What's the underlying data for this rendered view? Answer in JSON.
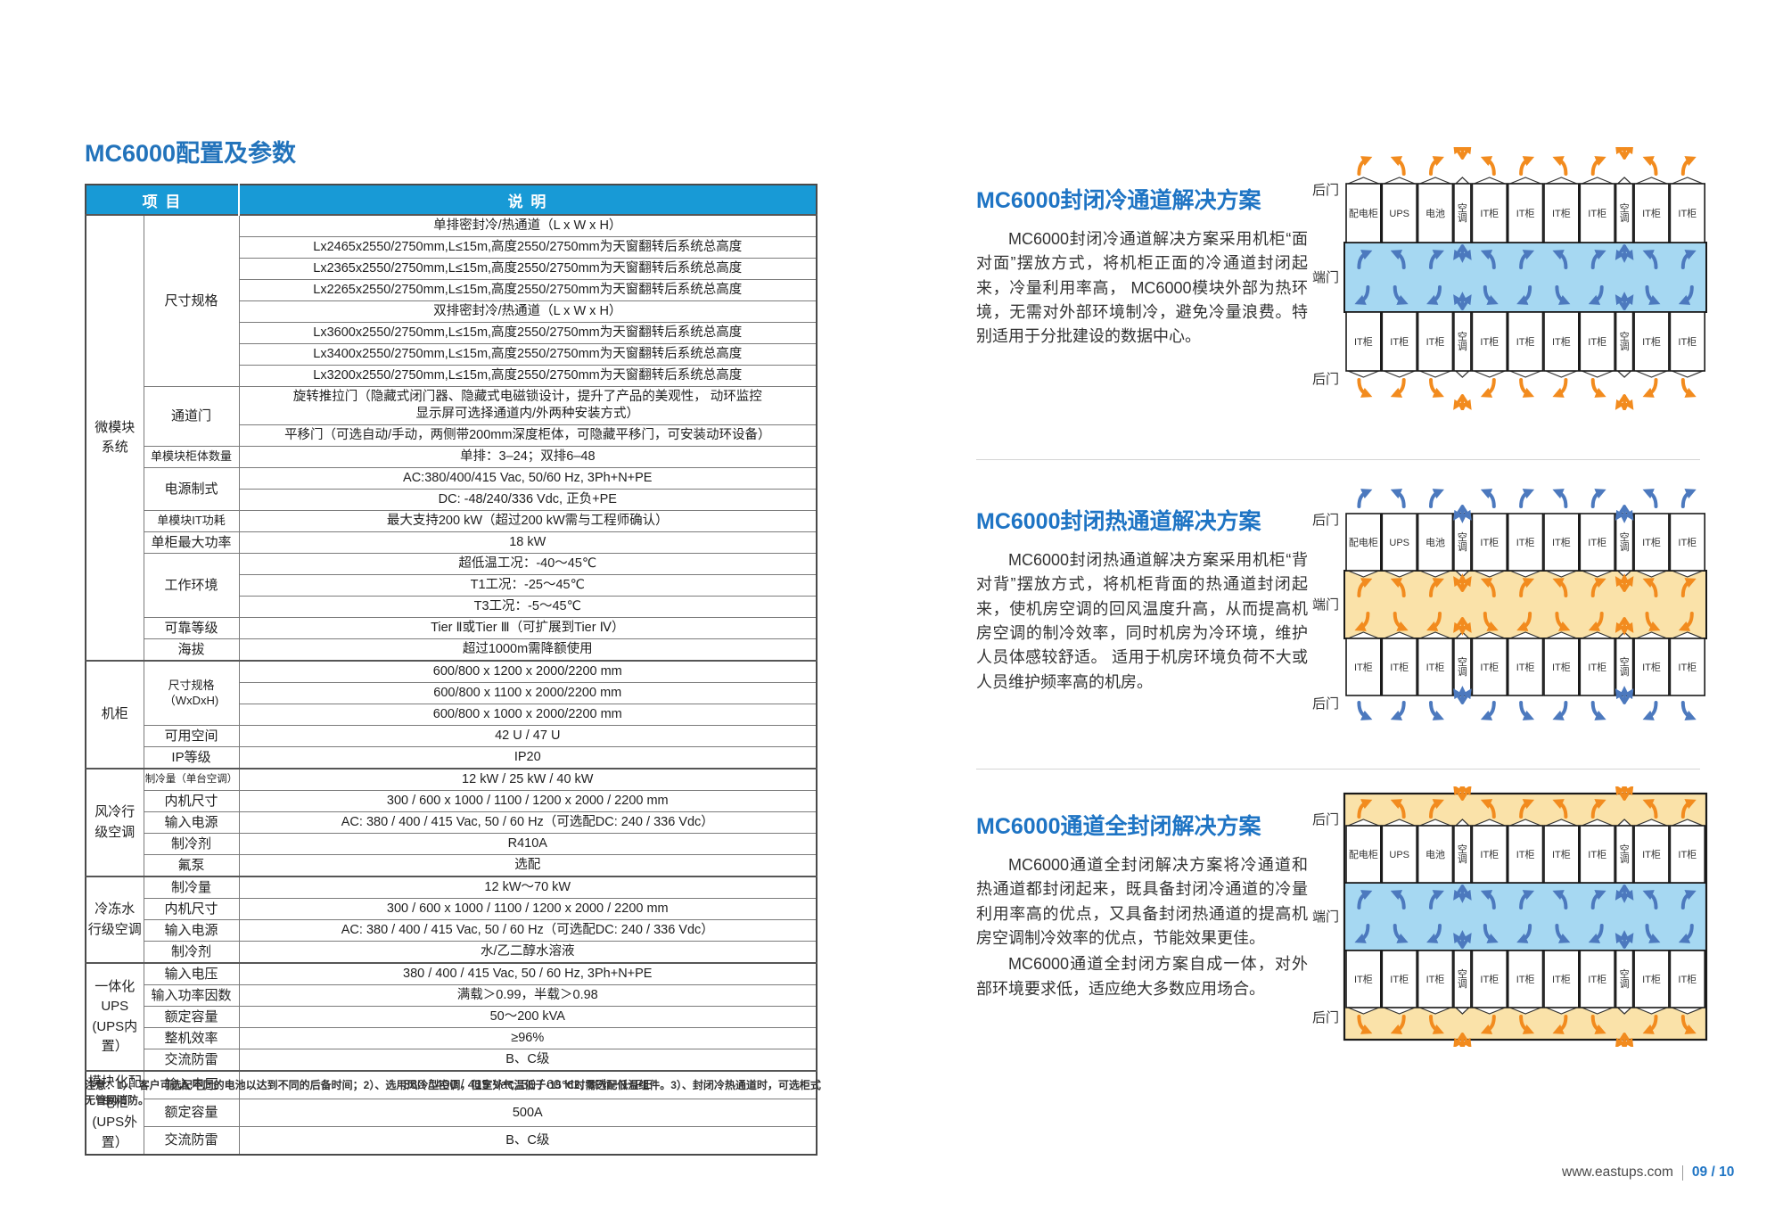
{
  "table": {
    "title": "MC6000配置及参数",
    "header": {
      "item": "项  目",
      "desc": "说  明"
    },
    "groups": [
      {
        "name": "微模块\n系统",
        "items": [
          {
            "label": "尺寸规格",
            "rows": [
              "单排密封冷/热通道（L x W x H）",
              "Lx2465x2550/2750mm,L≤15m,高度2550/2750mm为天窗翻转后系统总高度",
              "Lx2365x2550/2750mm,L≤15m,高度2550/2750mm为天窗翻转后系统总高度",
              "Lx2265x2550/2750mm,L≤15m,高度2550/2750mm为天窗翻转后系统总高度",
              "双排密封冷/热通道（L x W x H）",
              "Lx3600x2550/2750mm,L≤15m,高度2550/2750mm为天窗翻转后系统总高度",
              "Lx3400x2550/2750mm,L≤15m,高度2550/2750mm为天窗翻转后系统总高度",
              "Lx3200x2550/2750mm,L≤15m,高度2550/2750mm为天窗翻转后系统总高度"
            ]
          },
          {
            "label": "通道门",
            "rows": [
              "旋转推拉门（隐藏式闭门器、隐藏式电磁锁设计，提升了产品的美观性， 动环监控\n显示屏可选择通道内/外两种安装方式）",
              "平移门（可选自动/手动，两侧带200mm深度柜体，可隐藏平移门，可安装动环设备）"
            ]
          },
          {
            "label": "单模块柜体数量",
            "rows": [
              "单排：3–24；双排6–48"
            ]
          },
          {
            "label": "电源制式",
            "rows": [
              "AC:380/400/415 Vac, 50/60 Hz, 3Ph+N+PE",
              "DC: -48/240/336 Vdc, 正负+PE"
            ]
          },
          {
            "label": "单模块IT功耗",
            "rows": [
              "最大支持200 kW（超过200 kW需与工程师确认）"
            ]
          },
          {
            "label": "单柜最大功率",
            "rows": [
              "18 kW"
            ]
          },
          {
            "label": "工作环境",
            "rows": [
              "超低温工况：-40～45℃",
              "T1工况：-25～45℃",
              "T3工况：-5～45℃"
            ]
          },
          {
            "label": "可靠等级",
            "rows": [
              "Tier Ⅱ或Tier Ⅲ（可扩展到Tier Ⅳ）"
            ]
          },
          {
            "label": "海拔",
            "rows": [
              "超过1000m需降额使用"
            ]
          }
        ]
      },
      {
        "name": "机柜",
        "items": [
          {
            "label": "尺寸规格\n（WxDxH)",
            "rows": [
              "600/800 x 1200 x 2000/2200 mm",
              "600/800 x 1100 x 2000/2200 mm",
              "600/800 x 1000 x 2000/2200 mm"
            ]
          },
          {
            "label": "可用空间",
            "rows": [
              "42 U / 47 U"
            ]
          },
          {
            "label": "IP等级",
            "rows": [
              "IP20"
            ]
          }
        ]
      },
      {
        "name": "风冷行\n级空调",
        "items": [
          {
            "label": "制冷量（单台空调）",
            "rows": [
              "12 kW / 25 kW / 40 kW"
            ]
          },
          {
            "label": "内机尺寸",
            "rows": [
              "300 / 600 x 1000 / 1100 / 1200 x 2000 / 2200 mm"
            ]
          },
          {
            "label": "输入电源",
            "rows": [
              "AC: 380 / 400 / 415 Vac, 50 / 60 Hz（可选配DC: 240 / 336 Vdc）"
            ]
          },
          {
            "label": "制冷剂",
            "rows": [
              "R410A"
            ]
          },
          {
            "label": "氟泵",
            "rows": [
              "选配"
            ]
          }
        ]
      },
      {
        "name": "冷冻水\n行级空调",
        "items": [
          {
            "label": "制冷量",
            "rows": [
              "12 kW～70 kW"
            ]
          },
          {
            "label": "内机尺寸",
            "rows": [
              "300 / 600 x 1000 / 1100 / 1200 x 2000 / 2200 mm"
            ]
          },
          {
            "label": "输入电源",
            "rows": [
              "AC: 380 / 400 / 415 Vac, 50 / 60 Hz（可选配DC: 240 / 336 Vdc）"
            ]
          },
          {
            "label": "制冷剂",
            "rows": [
              "水/乙二醇水溶液"
            ]
          }
        ]
      },
      {
        "name": "一体化UPS\n(UPS内置）",
        "items": [
          {
            "label": "输入电压",
            "rows": [
              "380 / 400 / 415 Vac, 50 / 60 Hz, 3Ph+N+PE"
            ]
          },
          {
            "label": "输入功率因数",
            "rows": [
              "满载＞0.99，半载＞0.98"
            ]
          },
          {
            "label": "额定容量",
            "rows": [
              "50～200 kVA"
            ]
          },
          {
            "label": "整机效率",
            "rows": [
              "≥96%"
            ]
          },
          {
            "label": "交流防雷",
            "rows": [
              "B、C级"
            ]
          }
        ]
      },
      {
        "name": "模块化配\n电柜\n(UPS外置）",
        "items": [
          {
            "label": "输入电压",
            "rows": [
              "380 / 400 / 415 Vac, 50 / 60 Hz, 3Ph+N+PE"
            ]
          },
          {
            "label": "额定容量",
            "rows": [
              "500A"
            ]
          },
          {
            "label": "交流防雷",
            "rows": [
              "B、C级"
            ]
          }
        ]
      }
    ],
    "note": "注意：1）、客户可选配不同的电池以达到不同的后备时间；2）、选用风冷型空调，但室外气温低于-15℃时需选配低温组件。3）、封闭冷热通道时，可选柜式无管网消防。"
  },
  "sections": [
    {
      "title": "MC6000封闭冷通道解决方案",
      "diagram_type": "cold",
      "paragraphs": [
        "MC6000封闭冷通道解决方案采用机柜“面对面”摆放方式，将机柜正面的冷通道封闭起来，冷量利用率高， MC6000模块外部为热环境，无需对外部环境制冷，避免冷量浪费。特别适用于分批建设的数据中心。"
      ]
    },
    {
      "title": "MC6000封闭热通道解决方案",
      "diagram_type": "hot",
      "paragraphs": [
        "MC6000封闭热通道解决方案采用机柜“背对背”摆放方式，将机柜背面的热通道封闭起来，使机房空调的回风温度升高，从而提高机房空调的制冷效率，同时机房为冷环境，维护人员体感较舒适。 适用于机房环境负荷不大或人员维护频率高的机房。"
      ]
    },
    {
      "title": "MC6000通道全封闭解决方案",
      "diagram_type": "full",
      "paragraphs": [
        "MC6000通道全封闭解决方案将冷通道和热通道都封闭起来，既具备封闭冷通道的冷量利用率高的优点，又具备封闭热通道的提高机房空调制冷效率的优点，节能效果更佳。",
        "MC6000通道全封闭方案自成一体，对外部环境要求低，适应绝大多数应用场合。"
      ]
    }
  ],
  "diagram": {
    "door_labels": {
      "rear": "后门",
      "end": "端门"
    },
    "ac_label": "空调",
    "rows": {
      "top": [
        "配电柜",
        "UPS",
        "电池",
        "空调",
        "IT柜",
        "IT柜",
        "IT柜",
        "IT柜",
        "空调",
        "IT柜",
        "IT柜"
      ],
      "bottom": [
        "IT柜",
        "IT柜",
        "IT柜",
        "空调",
        "IT柜",
        "IT柜",
        "IT柜",
        "IT柜",
        "空调",
        "IT柜",
        "IT柜"
      ]
    }
  },
  "footer": {
    "site": "www.eastups.com",
    "page_no": "09 / 10"
  },
  "colors": {
    "accent_blue": "#1E74C4",
    "table_header_bg": "#189AD6",
    "cold_aisle_bg": "#A6D8F2",
    "hot_aisle_bg": "#FAE2A9",
    "arrow_orange": "#F28B1E",
    "arrow_blue": "#4C79BE"
  }
}
